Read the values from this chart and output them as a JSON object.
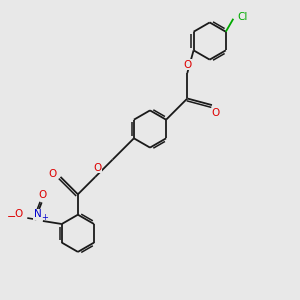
{
  "bg": "#e8e8e8",
  "bc": "#1a1a1a",
  "lw": 1.3,
  "lw_inner": 1.1,
  "dbo": 0.08,
  "fs": 7.5,
  "atom_colors": {
    "O": "#dd0000",
    "N": "#0000cc",
    "Cl": "#00aa00"
  },
  "figsize": [
    3.0,
    3.0
  ],
  "dpi": 100,
  "xlim": [
    -1.5,
    8.5
  ],
  "ylim": [
    -1.5,
    8.5
  ]
}
